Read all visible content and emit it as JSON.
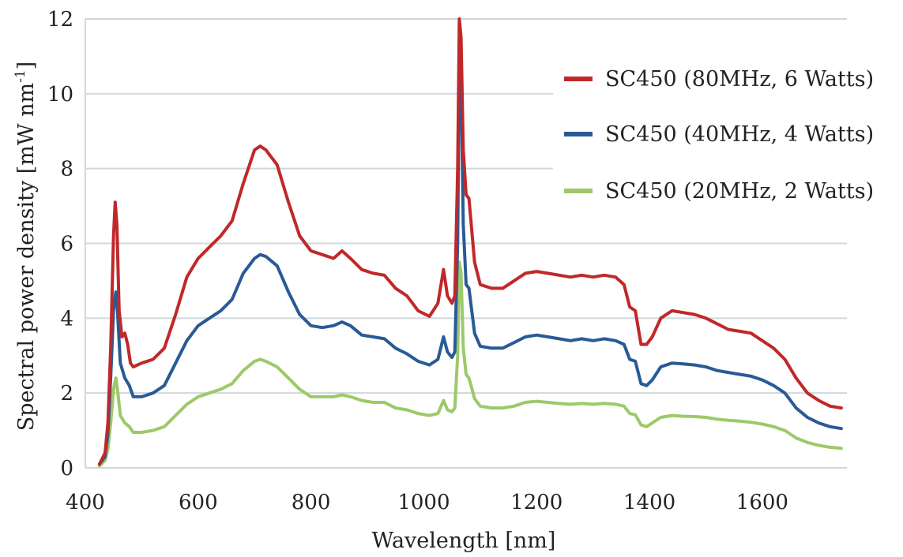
{
  "chart_data": {
    "type": "line",
    "xlabel": "Wavelength [nm]",
    "ylabel": "Spectral power density [mW nm",
    "ylabel_sup": "-1",
    "ylabel_close": "]",
    "xlim": [
      400,
      1750
    ],
    "ylim": [
      0,
      12
    ],
    "x_ticks": [
      400,
      600,
      800,
      1000,
      1200,
      1400,
      1600
    ],
    "y_ticks": [
      0,
      2,
      4,
      6,
      8,
      10,
      12
    ],
    "grid": "horizontal",
    "legend_position": "top-right",
    "series": [
      {
        "name": "SC450 (80MHz, 6 Watts)",
        "color": "#c0282a",
        "points": [
          [
            425,
            0.1
          ],
          [
            435,
            0.4
          ],
          [
            440,
            1.2
          ],
          [
            445,
            3.2
          ],
          [
            450,
            6.2
          ],
          [
            453,
            7.1
          ],
          [
            456,
            6.5
          ],
          [
            460,
            4.2
          ],
          [
            465,
            3.5
          ],
          [
            470,
            3.6
          ],
          [
            475,
            3.3
          ],
          [
            480,
            2.8
          ],
          [
            485,
            2.7
          ],
          [
            500,
            2.8
          ],
          [
            520,
            2.9
          ],
          [
            540,
            3.2
          ],
          [
            560,
            4.1
          ],
          [
            580,
            5.1
          ],
          [
            600,
            5.6
          ],
          [
            620,
            5.9
          ],
          [
            640,
            6.2
          ],
          [
            660,
            6.6
          ],
          [
            680,
            7.6
          ],
          [
            700,
            8.5
          ],
          [
            710,
            8.6
          ],
          [
            720,
            8.5
          ],
          [
            740,
            8.1
          ],
          [
            760,
            7.1
          ],
          [
            780,
            6.2
          ],
          [
            800,
            5.8
          ],
          [
            820,
            5.7
          ],
          [
            840,
            5.6
          ],
          [
            855,
            5.8
          ],
          [
            870,
            5.6
          ],
          [
            890,
            5.3
          ],
          [
            910,
            5.2
          ],
          [
            930,
            5.15
          ],
          [
            950,
            4.8
          ],
          [
            970,
            4.6
          ],
          [
            990,
            4.2
          ],
          [
            1010,
            4.05
          ],
          [
            1025,
            4.4
          ],
          [
            1035,
            5.3
          ],
          [
            1042,
            4.6
          ],
          [
            1050,
            4.4
          ],
          [
            1055,
            4.6
          ],
          [
            1060,
            8.0
          ],
          [
            1063,
            12.0
          ],
          [
            1066,
            11.5
          ],
          [
            1070,
            8.5
          ],
          [
            1075,
            7.3
          ],
          [
            1080,
            7.2
          ],
          [
            1090,
            5.5
          ],
          [
            1100,
            4.9
          ],
          [
            1120,
            4.8
          ],
          [
            1140,
            4.8
          ],
          [
            1160,
            5.0
          ],
          [
            1180,
            5.2
          ],
          [
            1200,
            5.25
          ],
          [
            1220,
            5.2
          ],
          [
            1240,
            5.15
          ],
          [
            1260,
            5.1
          ],
          [
            1280,
            5.15
          ],
          [
            1300,
            5.1
          ],
          [
            1320,
            5.15
          ],
          [
            1340,
            5.1
          ],
          [
            1355,
            4.9
          ],
          [
            1365,
            4.3
          ],
          [
            1375,
            4.2
          ],
          [
            1385,
            3.3
          ],
          [
            1395,
            3.3
          ],
          [
            1405,
            3.5
          ],
          [
            1420,
            4.0
          ],
          [
            1440,
            4.2
          ],
          [
            1460,
            4.15
          ],
          [
            1480,
            4.1
          ],
          [
            1500,
            4.0
          ],
          [
            1520,
            3.85
          ],
          [
            1540,
            3.7
          ],
          [
            1560,
            3.65
          ],
          [
            1580,
            3.6
          ],
          [
            1600,
            3.4
          ],
          [
            1620,
            3.2
          ],
          [
            1640,
            2.9
          ],
          [
            1660,
            2.4
          ],
          [
            1680,
            2.0
          ],
          [
            1700,
            1.8
          ],
          [
            1720,
            1.65
          ],
          [
            1740,
            1.6
          ]
        ]
      },
      {
        "name": "SC450 (40MHz, 4 Watts)",
        "color": "#2a5a96",
        "points": [
          [
            425,
            0.1
          ],
          [
            435,
            0.3
          ],
          [
            440,
            0.9
          ],
          [
            445,
            2.4
          ],
          [
            450,
            4.2
          ],
          [
            454,
            4.7
          ],
          [
            457,
            4.2
          ],
          [
            462,
            2.8
          ],
          [
            470,
            2.4
          ],
          [
            478,
            2.2
          ],
          [
            485,
            1.9
          ],
          [
            500,
            1.9
          ],
          [
            520,
            2.0
          ],
          [
            540,
            2.2
          ],
          [
            560,
            2.8
          ],
          [
            580,
            3.4
          ],
          [
            600,
            3.8
          ],
          [
            620,
            4.0
          ],
          [
            640,
            4.2
          ],
          [
            660,
            4.5
          ],
          [
            680,
            5.2
          ],
          [
            700,
            5.6
          ],
          [
            710,
            5.7
          ],
          [
            720,
            5.65
          ],
          [
            740,
            5.4
          ],
          [
            760,
            4.7
          ],
          [
            780,
            4.1
          ],
          [
            800,
            3.8
          ],
          [
            820,
            3.75
          ],
          [
            840,
            3.8
          ],
          [
            855,
            3.9
          ],
          [
            870,
            3.8
          ],
          [
            890,
            3.55
          ],
          [
            910,
            3.5
          ],
          [
            930,
            3.45
          ],
          [
            950,
            3.2
          ],
          [
            970,
            3.05
          ],
          [
            990,
            2.85
          ],
          [
            1010,
            2.75
          ],
          [
            1025,
            2.9
          ],
          [
            1035,
            3.5
          ],
          [
            1042,
            3.1
          ],
          [
            1050,
            2.95
          ],
          [
            1055,
            3.1
          ],
          [
            1060,
            6.0
          ],
          [
            1063,
            11.0
          ],
          [
            1066,
            10.5
          ],
          [
            1070,
            6.5
          ],
          [
            1075,
            4.9
          ],
          [
            1080,
            4.8
          ],
          [
            1090,
            3.6
          ],
          [
            1100,
            3.25
          ],
          [
            1120,
            3.2
          ],
          [
            1140,
            3.2
          ],
          [
            1160,
            3.35
          ],
          [
            1180,
            3.5
          ],
          [
            1200,
            3.55
          ],
          [
            1220,
            3.5
          ],
          [
            1240,
            3.45
          ],
          [
            1260,
            3.4
          ],
          [
            1280,
            3.45
          ],
          [
            1300,
            3.4
          ],
          [
            1320,
            3.45
          ],
          [
            1340,
            3.4
          ],
          [
            1355,
            3.3
          ],
          [
            1365,
            2.9
          ],
          [
            1375,
            2.85
          ],
          [
            1385,
            2.25
          ],
          [
            1395,
            2.2
          ],
          [
            1405,
            2.35
          ],
          [
            1420,
            2.7
          ],
          [
            1440,
            2.8
          ],
          [
            1460,
            2.78
          ],
          [
            1480,
            2.75
          ],
          [
            1500,
            2.7
          ],
          [
            1520,
            2.6
          ],
          [
            1540,
            2.55
          ],
          [
            1560,
            2.5
          ],
          [
            1580,
            2.45
          ],
          [
            1600,
            2.35
          ],
          [
            1620,
            2.2
          ],
          [
            1640,
            2.0
          ],
          [
            1660,
            1.6
          ],
          [
            1680,
            1.35
          ],
          [
            1700,
            1.2
          ],
          [
            1720,
            1.1
          ],
          [
            1740,
            1.05
          ]
        ]
      },
      {
        "name": "SC450 (20MHz, 2 Watts)",
        "color": "#9dc96a",
        "points": [
          [
            425,
            0.05
          ],
          [
            435,
            0.2
          ],
          [
            440,
            0.5
          ],
          [
            445,
            1.2
          ],
          [
            450,
            2.1
          ],
          [
            454,
            2.4
          ],
          [
            457,
            2.1
          ],
          [
            462,
            1.4
          ],
          [
            470,
            1.2
          ],
          [
            478,
            1.1
          ],
          [
            485,
            0.95
          ],
          [
            500,
            0.95
          ],
          [
            520,
            1.0
          ],
          [
            540,
            1.1
          ],
          [
            560,
            1.4
          ],
          [
            580,
            1.7
          ],
          [
            600,
            1.9
          ],
          [
            620,
            2.0
          ],
          [
            640,
            2.1
          ],
          [
            660,
            2.25
          ],
          [
            680,
            2.6
          ],
          [
            700,
            2.85
          ],
          [
            710,
            2.9
          ],
          [
            720,
            2.85
          ],
          [
            740,
            2.7
          ],
          [
            760,
            2.4
          ],
          [
            780,
            2.1
          ],
          [
            800,
            1.9
          ],
          [
            820,
            1.9
          ],
          [
            840,
            1.9
          ],
          [
            855,
            1.95
          ],
          [
            870,
            1.9
          ],
          [
            890,
            1.8
          ],
          [
            910,
            1.75
          ],
          [
            930,
            1.75
          ],
          [
            950,
            1.6
          ],
          [
            970,
            1.55
          ],
          [
            990,
            1.45
          ],
          [
            1010,
            1.4
          ],
          [
            1025,
            1.45
          ],
          [
            1035,
            1.8
          ],
          [
            1042,
            1.55
          ],
          [
            1050,
            1.5
          ],
          [
            1055,
            1.6
          ],
          [
            1060,
            3.0
          ],
          [
            1063,
            5.5
          ],
          [
            1066,
            5.2
          ],
          [
            1070,
            3.2
          ],
          [
            1075,
            2.5
          ],
          [
            1080,
            2.4
          ],
          [
            1090,
            1.85
          ],
          [
            1100,
            1.65
          ],
          [
            1120,
            1.6
          ],
          [
            1140,
            1.6
          ],
          [
            1160,
            1.65
          ],
          [
            1180,
            1.75
          ],
          [
            1200,
            1.78
          ],
          [
            1220,
            1.75
          ],
          [
            1240,
            1.72
          ],
          [
            1260,
            1.7
          ],
          [
            1280,
            1.72
          ],
          [
            1300,
            1.7
          ],
          [
            1320,
            1.72
          ],
          [
            1340,
            1.7
          ],
          [
            1355,
            1.65
          ],
          [
            1365,
            1.45
          ],
          [
            1375,
            1.42
          ],
          [
            1385,
            1.15
          ],
          [
            1395,
            1.1
          ],
          [
            1405,
            1.2
          ],
          [
            1420,
            1.35
          ],
          [
            1440,
            1.4
          ],
          [
            1460,
            1.38
          ],
          [
            1480,
            1.37
          ],
          [
            1500,
            1.35
          ],
          [
            1520,
            1.3
          ],
          [
            1540,
            1.27
          ],
          [
            1560,
            1.25
          ],
          [
            1580,
            1.22
          ],
          [
            1600,
            1.17
          ],
          [
            1620,
            1.1
          ],
          [
            1640,
            1.0
          ],
          [
            1660,
            0.8
          ],
          [
            1680,
            0.68
          ],
          [
            1700,
            0.6
          ],
          [
            1720,
            0.55
          ],
          [
            1740,
            0.52
          ]
        ]
      }
    ]
  }
}
